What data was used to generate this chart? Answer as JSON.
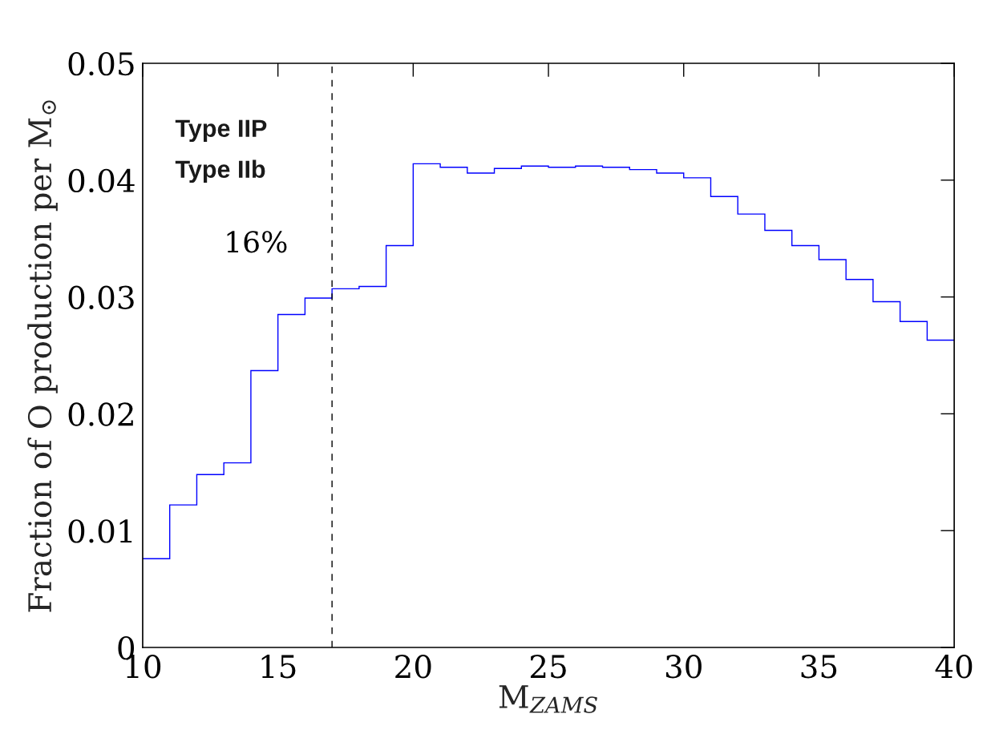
{
  "chart_data": {
    "type": "histogram",
    "xlabel": "M$_{ZAMS}$",
    "ylabel": "Fraction of O production per M$_{⊙}$",
    "bins": [
      10,
      11,
      12,
      13,
      14,
      15,
      16,
      17,
      18,
      19,
      20,
      21,
      22,
      23,
      24,
      25,
      26,
      27,
      28,
      29,
      30,
      31,
      32,
      33,
      34,
      35,
      36,
      37,
      38,
      39,
      40
    ],
    "values": [
      0.0076,
      0.0122,
      0.0148,
      0.0158,
      0.0237,
      0.0285,
      0.0299,
      0.0307,
      0.0309,
      0.0344,
      0.0414,
      0.0411,
      0.0406,
      0.041,
      0.0412,
      0.0411,
      0.0412,
      0.0411,
      0.0409,
      0.0406,
      0.0402,
      0.0386,
      0.0371,
      0.0357,
      0.0344,
      0.0332,
      0.0315,
      0.0296,
      0.0279,
      0.0263
    ],
    "color": "#0000ff",
    "xlim": [
      10,
      40
    ],
    "xticks": [
      10,
      15,
      20,
      25,
      30,
      35,
      40
    ],
    "ylim": [
      0,
      0.05
    ],
    "yticks": [
      0,
      0.01,
      0.02,
      0.03,
      0.04,
      0.05
    ],
    "ref_lines": [
      {
        "axis": "x",
        "value": 17,
        "color": "#000000",
        "line_style": "dashed"
      }
    ],
    "annotations": [
      "Type IIP",
      "Type IIb",
      "16%"
    ],
    "grid": false,
    "legend": false
  }
}
